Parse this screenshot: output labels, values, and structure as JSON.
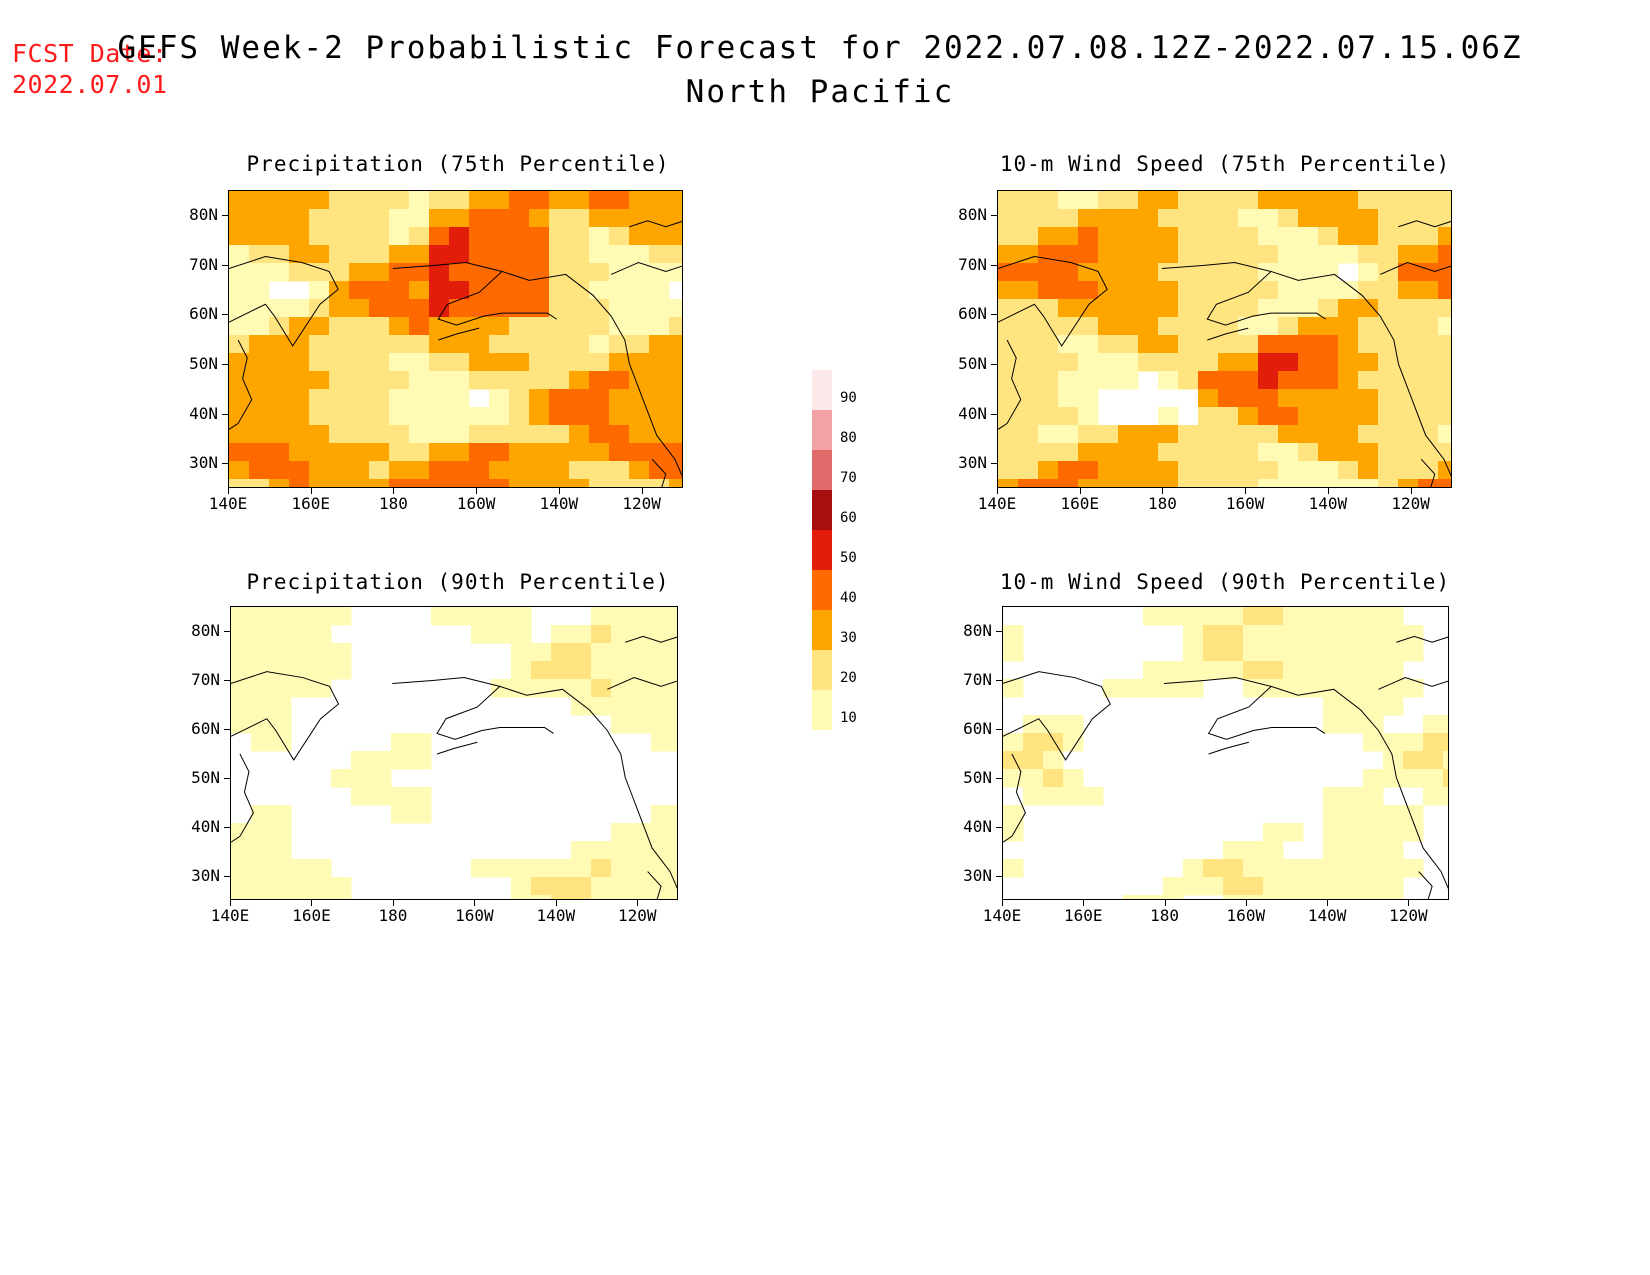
{
  "header": {
    "fcst_line1": "FCST Date:",
    "fcst_line2": "2022.07.01",
    "title": "GEFS Week-2 Probabilistic Forecast for 2022.07.08.12Z-2022.07.15.06Z",
    "subtitle": "North Pacific"
  },
  "axes": {
    "y_labels": [
      "80N",
      "70N",
      "60N",
      "50N",
      "40N",
      "30N"
    ],
    "x_labels": [
      "140E",
      "160E",
      "180",
      "160W",
      "140W",
      "120W"
    ]
  },
  "panels": [
    {
      "id": "precip-75",
      "title": "Precipitation (75th Percentile)",
      "level": "high"
    },
    {
      "id": "wind-75",
      "title": "10-m Wind Speed (75th Percentile)",
      "level": "high"
    },
    {
      "id": "precip-90",
      "title": "Precipitation (90th Percentile)",
      "level": "low"
    },
    {
      "id": "wind-90",
      "title": "10-m Wind Speed (90th Percentile)",
      "level": "low"
    }
  ],
  "colorbar": {
    "labels": [
      "90",
      "80",
      "70",
      "60",
      "50",
      "40",
      "30",
      "20",
      "10"
    ],
    "colors": [
      "#fde9ea",
      "#f2a2a5",
      "#e06a6a",
      "#a50f0f",
      "#e21d0a",
      "#ff6a00",
      "#ffa500",
      "#ffe47f",
      "#fffbb5"
    ]
  }
}
